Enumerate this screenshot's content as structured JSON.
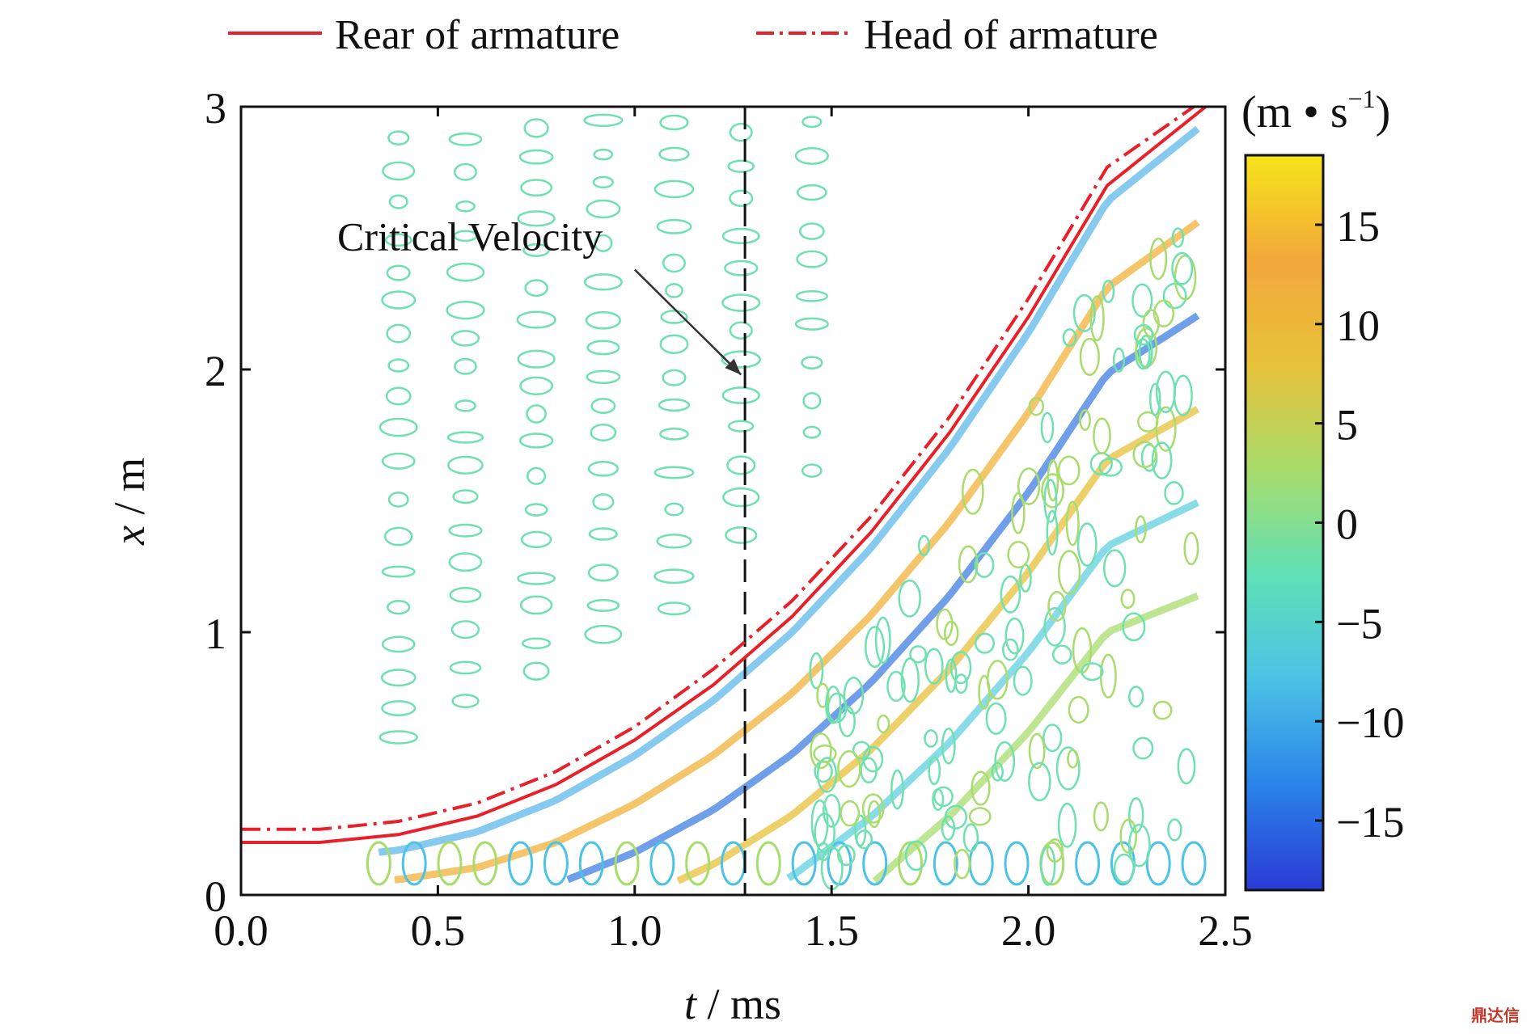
{
  "chart_data": {
    "type": "heatmap",
    "xlabel": {
      "var": "t",
      "unit": " / ms"
    },
    "ylabel": {
      "var": "x",
      "unit": " / m"
    },
    "xlim": [
      0.0,
      2.5
    ],
    "ylim": [
      0,
      3
    ],
    "xticks": [
      "0.0",
      "0.5",
      "1.0",
      "1.5",
      "2.0",
      "2.5"
    ],
    "yticks": [
      "0",
      "1",
      "2",
      "3"
    ],
    "colorbar": {
      "unit": "(m • s",
      "unit_exp": "−1",
      "unit_close": ")",
      "range": [
        -18.5,
        18.5
      ],
      "ticks": [
        "15",
        "10",
        "5",
        "0",
        "−5",
        "−10",
        "−15"
      ],
      "tick_values": [
        15,
        10,
        5,
        0,
        -5,
        -10,
        -15
      ],
      "colors": [
        "#2a3bd6",
        "#2a83e8",
        "#4bc2e6",
        "#5fe0b6",
        "#a8dc6c",
        "#e7c13a",
        "#f2a83a",
        "#f6e41a"
      ]
    },
    "legend": {
      "placement": "top",
      "entries": [
        {
          "label": "Rear of armature",
          "style": "solid",
          "color": "#e8202a"
        },
        {
          "label": "Head of armature",
          "style": "dash-dot",
          "color": "#e8202a"
        }
      ]
    },
    "series": [
      {
        "name": "Rear of armature",
        "x": [
          0.0,
          0.2,
          0.4,
          0.6,
          0.8,
          1.0,
          1.2,
          1.4,
          1.6,
          1.8,
          2.0,
          2.2,
          2.45
        ],
        "y": [
          0.2,
          0.2,
          0.23,
          0.3,
          0.42,
          0.59,
          0.8,
          1.06,
          1.38,
          1.76,
          2.2,
          2.7,
          3.0
        ]
      },
      {
        "name": "Head of armature",
        "x": [
          0.0,
          0.2,
          0.4,
          0.6,
          0.8,
          1.0,
          1.2,
          1.4,
          1.6,
          1.8,
          2.0,
          2.2,
          2.42
        ],
        "y": [
          0.25,
          0.25,
          0.28,
          0.35,
          0.47,
          0.64,
          0.86,
          1.12,
          1.44,
          1.82,
          2.27,
          2.77,
          3.0
        ]
      }
    ],
    "critical_line": {
      "t": 1.28
    },
    "annotation": {
      "text": "Critical Velocity",
      "text_pos": [
        0.45,
        2.5
      ],
      "arrow_to": [
        1.27,
        1.98
      ]
    }
  },
  "watermark": "鼎达信"
}
